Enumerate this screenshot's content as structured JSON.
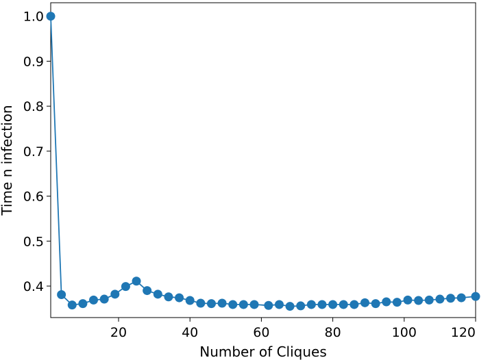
{
  "chart_data": {
    "type": "line",
    "title": "",
    "xlabel": "Number of Cliques",
    "ylabel": "Time n infection",
    "xlim": [
      1,
      120
    ],
    "ylim": [
      0.33,
      1.03
    ],
    "x_ticks": [
      20,
      40,
      60,
      80,
      100,
      120
    ],
    "y_ticks": [
      0.4,
      0.5,
      0.6,
      0.7,
      0.8,
      0.9,
      1.0
    ],
    "x_tick_labels": [
      "20",
      "40",
      "60",
      "80",
      "100",
      "120"
    ],
    "y_tick_labels": [
      "0.4",
      "0.5",
      "0.6",
      "0.7",
      "0.8",
      "0.9",
      "1.0"
    ],
    "grid": false,
    "series": [
      {
        "color": "#1f77b4",
        "marker": "circle",
        "x": [
          1,
          4,
          7,
          10,
          13,
          16,
          19,
          22,
          25,
          28,
          31,
          34,
          37,
          40,
          43,
          46,
          49,
          52,
          55,
          58,
          62,
          65,
          68,
          71,
          74,
          77,
          80,
          83,
          86,
          89,
          92,
          95,
          98,
          101,
          104,
          107,
          110,
          113,
          116,
          120
        ],
        "y": [
          1.0,
          0.381,
          0.358,
          0.361,
          0.369,
          0.371,
          0.382,
          0.399,
          0.411,
          0.39,
          0.382,
          0.376,
          0.374,
          0.368,
          0.362,
          0.361,
          0.362,
          0.359,
          0.359,
          0.359,
          0.357,
          0.359,
          0.355,
          0.356,
          0.359,
          0.359,
          0.359,
          0.359,
          0.359,
          0.363,
          0.361,
          0.365,
          0.364,
          0.369,
          0.368,
          0.369,
          0.371,
          0.373,
          0.374,
          0.377
        ]
      }
    ]
  }
}
